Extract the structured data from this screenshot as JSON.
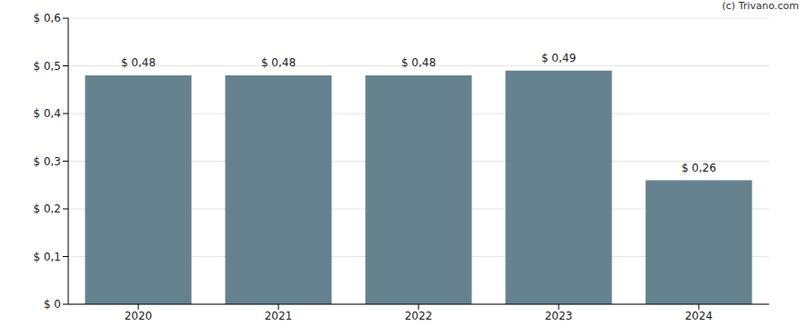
{
  "chart_data": {
    "type": "bar",
    "annotations": [
      "(c) Trivano.com"
    ],
    "categories": [
      "2020",
      "2021",
      "2022",
      "2023",
      "2024"
    ],
    "values": [
      0.48,
      0.48,
      0.48,
      0.49,
      0.26
    ],
    "value_labels": [
      "$ 0,48",
      "$ 0,48",
      "$ 0,48",
      "$ 0,49",
      "$ 0,26"
    ],
    "color": "#66828f",
    "ylim": [
      0,
      0.6
    ],
    "yticks": [
      {
        "value": 0,
        "label": "$ 0"
      },
      {
        "value": 0.1,
        "label": "$ 0,1"
      },
      {
        "value": 0.2,
        "label": "$ 0,2"
      },
      {
        "value": 0.3,
        "label": "$ 0,3"
      },
      {
        "value": 0.4,
        "label": "$ 0,4"
      },
      {
        "value": 0.5,
        "label": "$ 0,5"
      },
      {
        "value": 0.6,
        "label": "$ 0,6"
      }
    ],
    "grid": true,
    "data_labels": true
  }
}
